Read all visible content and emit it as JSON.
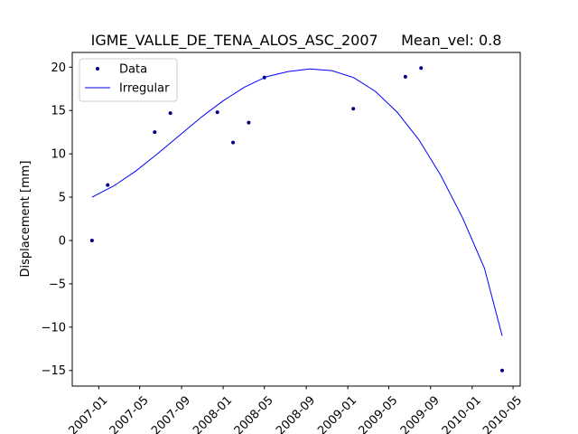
{
  "chart_data": {
    "type": "line",
    "title": "IGME_VALLE_DE_TENA_ALOS_ASC_2007     Mean_vel: 0.8",
    "xlabel": "",
    "ylabel": "Displacement [mm]",
    "xlim": [
      "2006-10-15",
      "2010-05-22"
    ],
    "ylim": [
      -16.8,
      21.7
    ],
    "x_ticks": [
      "2007-01",
      "2007-05",
      "2007-09",
      "2008-01",
      "2008-05",
      "2008-09",
      "2009-01",
      "2009-05",
      "2009-09",
      "2010-01",
      "2010-05"
    ],
    "y_ticks": [
      -15,
      -10,
      -5,
      0,
      5,
      10,
      15,
      20
    ],
    "grid": false,
    "legend_position": "top-left",
    "series": [
      {
        "name": "Data",
        "style": "points",
        "color": "#000080",
        "points": [
          {
            "x": "2006-12-12",
            "y": 0.0
          },
          {
            "x": "2007-01-27",
            "y": 6.4
          },
          {
            "x": "2007-06-14",
            "y": 12.5
          },
          {
            "x": "2007-07-30",
            "y": 14.7
          },
          {
            "x": "2007-12-15",
            "y": 14.8
          },
          {
            "x": "2008-01-30",
            "y": 11.3
          },
          {
            "x": "2008-03-16",
            "y": 13.6
          },
          {
            "x": "2008-05-01",
            "y": 18.8
          },
          {
            "x": "2009-01-17",
            "y": 15.2
          },
          {
            "x": "2009-06-19",
            "y": 18.9
          },
          {
            "x": "2009-08-04",
            "y": 19.9
          },
          {
            "x": "2010-03-30",
            "y": -15.0
          }
        ]
      },
      {
        "name": "Irregular",
        "style": "line",
        "color": "#0000ff",
        "points": [
          {
            "x": "2006-12-12",
            "y": 5.0
          },
          {
            "x": "2007-02-14",
            "y": 6.3
          },
          {
            "x": "2007-04-19",
            "y": 8.0
          },
          {
            "x": "2007-06-22",
            "y": 10.0
          },
          {
            "x": "2007-08-25",
            "y": 12.1
          },
          {
            "x": "2007-10-28",
            "y": 14.2
          },
          {
            "x": "2007-12-31",
            "y": 16.1
          },
          {
            "x": "2008-03-04",
            "y": 17.7
          },
          {
            "x": "2008-05-07",
            "y": 18.9
          },
          {
            "x": "2008-07-10",
            "y": 19.5
          },
          {
            "x": "2008-09-12",
            "y": 19.8
          },
          {
            "x": "2008-11-15",
            "y": 19.6
          },
          {
            "x": "2009-01-18",
            "y": 18.8
          },
          {
            "x": "2009-03-23",
            "y": 17.2
          },
          {
            "x": "2009-05-26",
            "y": 14.8
          },
          {
            "x": "2009-07-29",
            "y": 11.6
          },
          {
            "x": "2009-10-01",
            "y": 7.5
          },
          {
            "x": "2009-12-04",
            "y": 2.6
          },
          {
            "x": "2010-02-06",
            "y": -3.2
          },
          {
            "x": "2010-03-30",
            "y": -11.0
          }
        ]
      }
    ]
  }
}
